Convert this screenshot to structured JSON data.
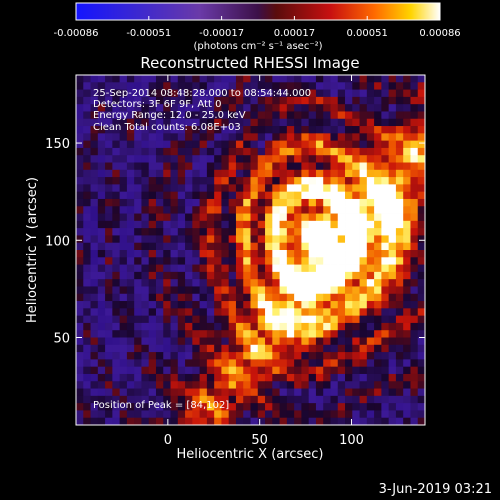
{
  "colorbar": {
    "tick_labels": [
      "-0.00086",
      "-0.00051",
      "-0.00017",
      "0.00017",
      "0.00051",
      "0.00086"
    ],
    "unit_label": "(photons cm⁻² s⁻¹ asec⁻²)",
    "range": [
      -0.00086,
      0.00086
    ]
  },
  "chart_data": {
    "type": "heatmap",
    "title": "Reconstructed RHESSI Image",
    "xlabel": "Heliocentric X (arcsec)",
    "ylabel": "Heliocentric Y (arcsec)",
    "xlim": [
      -50,
      140
    ],
    "ylim": [
      5,
      185
    ],
    "x_ticks": [
      0,
      50,
      100
    ],
    "y_ticks": [
      50,
      100,
      150
    ],
    "peak_position": [
      84,
      102
    ],
    "annotations": [
      "25-Sep-2014 08:48:28.000 to 08:54:44.000",
      "Detectors: 3F 6F 9F, Att 0",
      "Energy Range: 12.0 - 25.0 keV",
      "Clean    Total counts: 6.08E+03"
    ],
    "peak_label": "Position of Peak = [84,102]"
  },
  "footer": {
    "date": "3-Jun-2019 03:21"
  }
}
